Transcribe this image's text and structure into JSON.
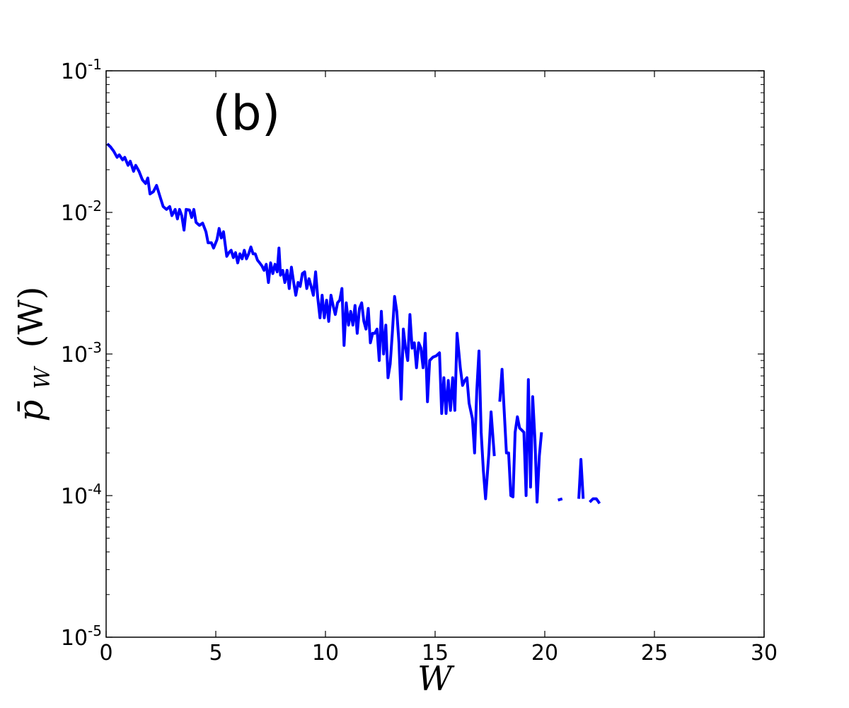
{
  "chart_data": {
    "type": "line",
    "panel_label": "(b)",
    "xlabel": "W",
    "ylabel_main": "p̄",
    "ylabel_sub": "W",
    "ylabel_arg": "(W)",
    "xlim": [
      0,
      30
    ],
    "ylim": [
      1e-05,
      0.1
    ],
    "yscale": "log",
    "grid": false,
    "x_ticks": [
      {
        "value": 0,
        "label": "0"
      },
      {
        "value": 5,
        "label": "5"
      },
      {
        "value": 10,
        "label": "10"
      },
      {
        "value": 15,
        "label": "15"
      },
      {
        "value": 20,
        "label": "20"
      },
      {
        "value": 25,
        "label": "25"
      },
      {
        "value": 30,
        "label": "30"
      }
    ],
    "y_ticks": [
      {
        "value": 0.1,
        "base": "10",
        "exp": "-1"
      },
      {
        "value": 0.01,
        "base": "10",
        "exp": "-2"
      },
      {
        "value": 0.001,
        "base": "10",
        "exp": "-3"
      },
      {
        "value": 0.0001,
        "base": "10",
        "exp": "-4"
      },
      {
        "value": 1e-05,
        "base": "10",
        "exp": "-5"
      }
    ],
    "series": [
      {
        "color": "#0000ff",
        "segments": [
          [
            [
              0.05,
              0.0305
            ],
            [
              0.2,
              0.029
            ],
            [
              0.35,
              0.027
            ],
            [
              0.5,
              0.0245
            ],
            [
              0.6,
              0.0255
            ],
            [
              0.75,
              0.0235
            ],
            [
              0.85,
              0.0245
            ],
            [
              1.0,
              0.0215
            ],
            [
              1.1,
              0.023
            ],
            [
              1.25,
              0.0195
            ],
            [
              1.35,
              0.0215
            ],
            [
              1.5,
              0.0195
            ],
            [
              1.65,
              0.017
            ],
            [
              1.8,
              0.016
            ],
            [
              1.9,
              0.0175
            ],
            [
              2.0,
              0.0135
            ],
            [
              2.15,
              0.014
            ],
            [
              2.3,
              0.0155
            ],
            [
              2.45,
              0.013
            ],
            [
              2.6,
              0.011
            ],
            [
              2.75,
              0.0105
            ],
            [
              2.9,
              0.011
            ],
            [
              3.0,
              0.0095
            ],
            [
              3.15,
              0.0105
            ],
            [
              3.25,
              0.009
            ],
            [
              3.35,
              0.0105
            ],
            [
              3.45,
              0.0095
            ],
            [
              3.55,
              0.0075
            ],
            [
              3.65,
              0.0105
            ],
            [
              3.8,
              0.0104
            ],
            [
              3.9,
              0.0092
            ],
            [
              4.0,
              0.0105
            ],
            [
              4.1,
              0.0085
            ],
            [
              4.25,
              0.0081
            ],
            [
              4.4,
              0.0084
            ],
            [
              4.55,
              0.0073
            ],
            [
              4.65,
              0.0061
            ],
            [
              4.8,
              0.0061
            ],
            [
              4.9,
              0.0056
            ],
            [
              5.05,
              0.0064
            ],
            [
              5.15,
              0.0077
            ],
            [
              5.25,
              0.0066
            ],
            [
              5.35,
              0.0073
            ],
            [
              5.5,
              0.0049
            ],
            [
              5.6,
              0.0052
            ],
            [
              5.7,
              0.0054
            ],
            [
              5.8,
              0.0048
            ],
            [
              5.9,
              0.0052
            ],
            [
              6.0,
              0.0044
            ],
            [
              6.1,
              0.0051
            ],
            [
              6.2,
              0.0047
            ],
            [
              6.3,
              0.0054
            ],
            [
              6.4,
              0.0047
            ],
            [
              6.5,
              0.0051
            ],
            [
              6.6,
              0.0057
            ],
            [
              6.7,
              0.0051
            ],
            [
              6.8,
              0.0051
            ],
            [
              6.9,
              0.0046
            ],
            [
              7.0,
              0.0044
            ],
            [
              7.1,
              0.0042
            ],
            [
              7.2,
              0.0039
            ],
            [
              7.3,
              0.0043
            ],
            [
              7.4,
              0.0032
            ],
            [
              7.5,
              0.0044
            ],
            [
              7.6,
              0.0037
            ],
            [
              7.7,
              0.0043
            ],
            [
              7.8,
              0.0038
            ],
            [
              7.88,
              0.0056
            ],
            [
              7.95,
              0.0036
            ],
            [
              8.05,
              0.0039
            ],
            [
              8.15,
              0.0032
            ],
            [
              8.25,
              0.0039
            ],
            [
              8.35,
              0.0029
            ],
            [
              8.45,
              0.0041
            ],
            [
              8.55,
              0.0032
            ],
            [
              8.65,
              0.0026
            ],
            [
              8.75,
              0.0032
            ],
            [
              8.85,
              0.003
            ],
            [
              8.95,
              0.0037
            ],
            [
              9.05,
              0.0038
            ],
            [
              9.15,
              0.0029
            ],
            [
              9.25,
              0.0034
            ],
            [
              9.35,
              0.003
            ],
            [
              9.45,
              0.0026
            ],
            [
              9.55,
              0.0038
            ],
            [
              9.65,
              0.0025
            ],
            [
              9.75,
              0.0018
            ],
            [
              9.85,
              0.0026
            ],
            [
              9.95,
              0.0018
            ],
            [
              10.05,
              0.0024
            ],
            [
              10.15,
              0.0017
            ],
            [
              10.25,
              0.0026
            ],
            [
              10.35,
              0.0022
            ],
            [
              10.45,
              0.0019
            ],
            [
              10.55,
              0.0023
            ],
            [
              10.65,
              0.0024
            ],
            [
              10.75,
              0.0029
            ],
            [
              10.85,
              0.00115
            ],
            [
              10.95,
              0.0023
            ],
            [
              11.05,
              0.0016
            ],
            [
              11.15,
              0.002
            ],
            [
              11.25,
              0.0016
            ],
            [
              11.35,
              0.0022
            ],
            [
              11.45,
              0.0014
            ],
            [
              11.55,
              0.0021
            ],
            [
              11.65,
              0.0023
            ],
            [
              11.75,
              0.0017
            ],
            [
              11.85,
              0.0015
            ],
            [
              11.95,
              0.0021
            ],
            [
              12.05,
              0.0012
            ],
            [
              12.15,
              0.0014
            ],
            [
              12.25,
              0.0014
            ],
            [
              12.35,
              0.0015
            ],
            [
              12.45,
              0.0009
            ],
            [
              12.55,
              0.002
            ],
            [
              12.65,
              0.001
            ],
            [
              12.75,
              0.0016
            ],
            [
              12.85,
              0.00068
            ],
            [
              12.95,
              0.00085
            ],
            [
              13.05,
              0.0014
            ],
            [
              13.15,
              0.00255
            ],
            [
              13.25,
              0.002
            ],
            [
              13.35,
              0.0012
            ],
            [
              13.45,
              0.00048
            ],
            [
              13.55,
              0.0015
            ],
            [
              13.65,
              0.0011
            ],
            [
              13.75,
              0.0009
            ],
            [
              13.85,
              0.0019
            ],
            [
              13.95,
              0.0011
            ],
            [
              14.05,
              0.0012
            ],
            [
              14.15,
              0.0008
            ],
            [
              14.25,
              0.0012
            ],
            [
              14.35,
              0.0011
            ],
            [
              14.45,
              0.0008
            ],
            [
              14.55,
              0.0014
            ],
            [
              14.65,
              0.00046
            ],
            [
              14.75,
              0.0009
            ],
            [
              14.9,
              0.00095
            ],
            [
              15.05,
              0.00097
            ],
            [
              15.2,
              0.00102
            ],
            [
              15.3,
              0.00038
            ],
            [
              15.4,
              0.00068
            ],
            [
              15.5,
              0.00038
            ],
            [
              15.6,
              0.00065
            ],
            [
              15.7,
              0.0004
            ],
            [
              15.8,
              0.00068
            ],
            [
              15.9,
              0.0004
            ],
            [
              16.0,
              0.0014
            ],
            [
              16.15,
              0.0008
            ],
            [
              16.25,
              0.0006
            ],
            [
              16.35,
              0.00065
            ],
            [
              16.45,
              0.00068
            ],
            [
              16.55,
              0.00045
            ],
            [
              16.7,
              0.00035
            ],
            [
              16.8,
              0.0002
            ],
            [
              16.9,
              0.00055
            ],
            [
              17.0,
              0.00105
            ],
            [
              17.1,
              0.00028
            ],
            [
              17.2,
              0.00015
            ],
            [
              17.3,
              9.5e-05
            ],
            [
              17.45,
              0.0002
            ],
            [
              17.55,
              0.00039
            ],
            [
              17.7,
              0.00019
            ]
          ],
          [
            [
              17.95,
              0.00046
            ],
            [
              18.05,
              0.00078
            ],
            [
              18.15,
              0.0004
            ],
            [
              18.25,
              0.0002
            ],
            [
              18.35,
              0.0002
            ],
            [
              18.45,
              0.0001
            ],
            [
              18.55,
              9.8e-05
            ],
            [
              18.65,
              0.00028
            ],
            [
              18.75,
              0.00036
            ],
            [
              18.85,
              0.0003
            ],
            [
              18.95,
              0.00029
            ],
            [
              19.05,
              0.00028
            ],
            [
              19.15,
              0.0001
            ],
            [
              19.25,
              0.00066
            ],
            [
              19.35,
              0.000115
            ],
            [
              19.45,
              0.0005
            ],
            [
              19.55,
              0.00025
            ],
            [
              19.65,
              9e-05
            ],
            [
              19.75,
              0.00019
            ],
            [
              19.85,
              0.00028
            ]
          ],
          [
            [
              20.6,
              9.3e-05
            ],
            [
              20.8,
              9.5e-05
            ]
          ],
          [
            [
              21.55,
              9.5e-05
            ],
            [
              21.65,
              0.00018
            ],
            [
              21.75,
              9.5e-05
            ]
          ],
          [
            [
              22.05,
              9e-05
            ],
            [
              22.2,
              9.5e-05
            ],
            [
              22.35,
              9.5e-05
            ],
            [
              22.5,
              8.8e-05
            ]
          ]
        ]
      }
    ]
  }
}
